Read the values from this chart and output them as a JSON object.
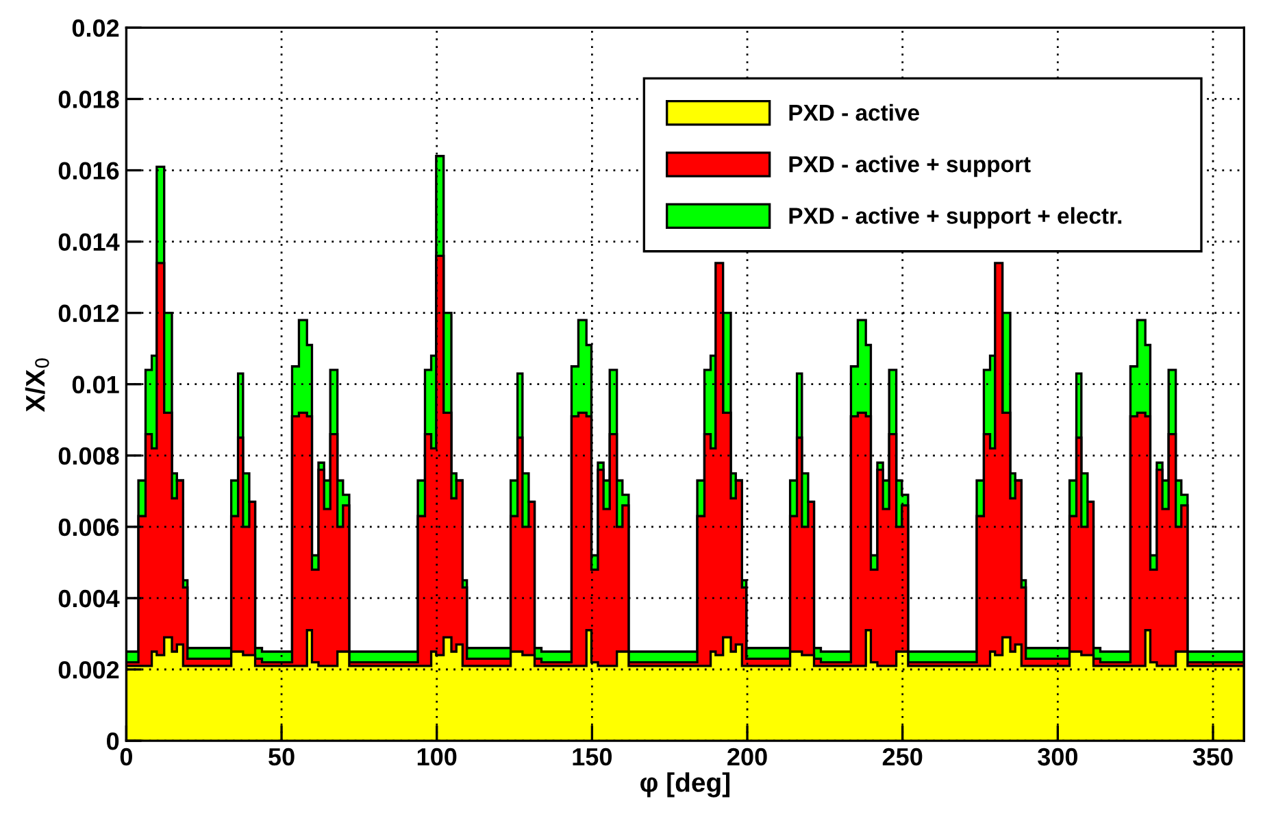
{
  "chart_data": {
    "type": "histogram",
    "xlabel": "φ [deg]",
    "ylabel": "X/X$_{0}$",
    "bins": [
      0,
      3.9,
      6.2,
      8.2,
      9.8,
      12.2,
      14.7,
      16.3,
      18.3,
      19.7,
      33.8,
      36,
      37.6,
      39.6,
      41.5,
      43.7,
      53.4,
      55.6,
      58.2,
      59.8,
      61.9,
      63.7,
      65.7,
      68,
      69.8,
      71.8,
      90,
      93.9,
      96.2,
      98.2,
      99.8,
      102.2,
      104.7,
      106.3,
      108.3,
      109.7,
      123.8,
      126,
      127.6,
      129.6,
      131.5,
      133.7,
      143.4,
      145.6,
      148.2,
      149.8,
      151.9,
      153.7,
      155.7,
      158,
      159.8,
      161.8,
      180,
      183.9,
      186.2,
      188.2,
      189.8,
      192.2,
      194.7,
      196.3,
      198.3,
      199.7,
      213.8,
      216,
      217.6,
      219.6,
      221.5,
      223.7,
      233.4,
      235.6,
      238.2,
      239.8,
      241.9,
      243.7,
      245.7,
      248,
      249.8,
      251.8,
      270,
      273.9,
      276.2,
      278.2,
      279.8,
      282.2,
      284.7,
      286.3,
      288.3,
      289.7,
      303.8,
      306,
      307.6,
      309.6,
      311.5,
      313.7,
      323.4,
      325.6,
      328.2,
      329.8,
      331.9,
      333.7,
      335.7,
      338,
      339.8,
      341.8,
      360
    ],
    "series": [
      {
        "name": "PXD - active",
        "color": "#ffff00",
        "values": [
          0.0021,
          0.0021,
          0.0021,
          0.0025,
          0.0024,
          0.0029,
          0.0025,
          0.0027,
          0.0021,
          0.0021,
          0.0025,
          0.0025,
          0.0024,
          0.0024,
          0.0021,
          0.0021,
          0.0021,
          0.0021,
          0.0031,
          0.0022,
          0.0021,
          0.0021,
          0.0021,
          0.0025,
          0.0025,
          0.0021,
          0.0021,
          0.0021,
          0.0021,
          0.0025,
          0.0024,
          0.0029,
          0.0025,
          0.0027,
          0.0021,
          0.0021,
          0.0025,
          0.0025,
          0.0024,
          0.0024,
          0.0021,
          0.0021,
          0.0021,
          0.0021,
          0.0031,
          0.0022,
          0.0021,
          0.0021,
          0.0021,
          0.0025,
          0.0025,
          0.0021,
          0.0021,
          0.0021,
          0.0021,
          0.0025,
          0.0024,
          0.0029,
          0.0025,
          0.0027,
          0.0021,
          0.0021,
          0.0025,
          0.0025,
          0.0024,
          0.0024,
          0.0021,
          0.0021,
          0.0021,
          0.0021,
          0.0031,
          0.0022,
          0.0021,
          0.0021,
          0.0021,
          0.0025,
          0.0025,
          0.0021,
          0.0021,
          0.0021,
          0.0021,
          0.0025,
          0.0024,
          0.0029,
          0.0025,
          0.0027,
          0.0021,
          0.0021,
          0.0025,
          0.0025,
          0.0024,
          0.0024,
          0.0021,
          0.0021,
          0.0021,
          0.0021,
          0.0031,
          0.0022,
          0.0021,
          0.0021,
          0.0021,
          0.0025,
          0.0025,
          0.0021
        ]
      },
      {
        "name": "PXD - active + support",
        "color": "#ff0000",
        "values": [
          0.0022,
          0.0063,
          0.0086,
          0.0082,
          0.0134,
          0.0092,
          0.0068,
          0.0073,
          0.0043,
          0.0023,
          0.0063,
          0.0085,
          0.006,
          0.0067,
          0.0023,
          0.0022,
          0.0091,
          0.0092,
          0.0091,
          0.0048,
          0.0076,
          0.0065,
          0.0086,
          0.006,
          0.0066,
          0.0022,
          0.0022,
          0.0063,
          0.0086,
          0.0082,
          0.0136,
          0.0092,
          0.0068,
          0.0073,
          0.0043,
          0.0023,
          0.0063,
          0.0085,
          0.006,
          0.0067,
          0.0023,
          0.0022,
          0.0091,
          0.0092,
          0.0091,
          0.0048,
          0.0076,
          0.0065,
          0.0086,
          0.006,
          0.0066,
          0.0022,
          0.0022,
          0.0063,
          0.0086,
          0.0082,
          0.0134,
          0.0092,
          0.0068,
          0.0073,
          0.0043,
          0.0023,
          0.0063,
          0.0085,
          0.006,
          0.0067,
          0.0023,
          0.0022,
          0.0091,
          0.0092,
          0.0091,
          0.0048,
          0.0076,
          0.0065,
          0.0086,
          0.006,
          0.0066,
          0.0022,
          0.0022,
          0.0063,
          0.0086,
          0.0082,
          0.0134,
          0.0092,
          0.0068,
          0.0073,
          0.0043,
          0.0023,
          0.0063,
          0.0085,
          0.006,
          0.0067,
          0.0023,
          0.0022,
          0.0091,
          0.0092,
          0.0091,
          0.0048,
          0.0076,
          0.0065,
          0.0086,
          0.006,
          0.0066,
          0.0022
        ]
      },
      {
        "name": "PXD - active + support + electr.",
        "color": "#00ff00",
        "values": [
          0.0025,
          0.0073,
          0.0104,
          0.0108,
          0.0161,
          0.012,
          0.0075,
          0.0073,
          0.0045,
          0.0026,
          0.0073,
          0.0103,
          0.0075,
          0.0067,
          0.0026,
          0.0025,
          0.0105,
          0.0118,
          0.0111,
          0.0052,
          0.0078,
          0.0073,
          0.0104,
          0.0073,
          0.0069,
          0.0025,
          0.0025,
          0.0073,
          0.0104,
          0.0108,
          0.0164,
          0.012,
          0.0075,
          0.0073,
          0.0045,
          0.0026,
          0.0073,
          0.0103,
          0.0075,
          0.0067,
          0.0026,
          0.0025,
          0.0105,
          0.0118,
          0.0111,
          0.0052,
          0.0078,
          0.0073,
          0.0104,
          0.0073,
          0.0069,
          0.0025,
          0.0025,
          0.0073,
          0.0104,
          0.0108,
          null,
          0.012,
          0.0075,
          0.0073,
          0.0045,
          0.0026,
          0.0073,
          0.0103,
          0.0075,
          0.0067,
          0.0026,
          0.0025,
          0.0105,
          0.0118,
          0.0111,
          0.0052,
          0.0078,
          0.0073,
          0.0104,
          0.0073,
          0.0069,
          0.0025,
          0.0025,
          0.0073,
          0.0104,
          0.0108,
          null,
          0.012,
          0.0075,
          0.0073,
          0.0045,
          0.0026,
          0.0073,
          0.0103,
          0.0075,
          0.0067,
          0.0026,
          0.0025,
          0.0105,
          0.0118,
          0.0111,
          0.0052,
          0.0078,
          0.0073,
          0.0104,
          0.0073,
          0.0069,
          0.0025
        ]
      }
    ],
    "xlim": [
      0,
      360
    ],
    "xticks": [
      0,
      50,
      100,
      150,
      200,
      250,
      300,
      350
    ],
    "ylim": [
      0,
      0.02
    ],
    "yticks": [
      0,
      0.002,
      0.004,
      0.006,
      0.008,
      0.01,
      0.012,
      0.014,
      0.016,
      0.018,
      0.02
    ],
    "grid": true,
    "legend": "top right"
  }
}
